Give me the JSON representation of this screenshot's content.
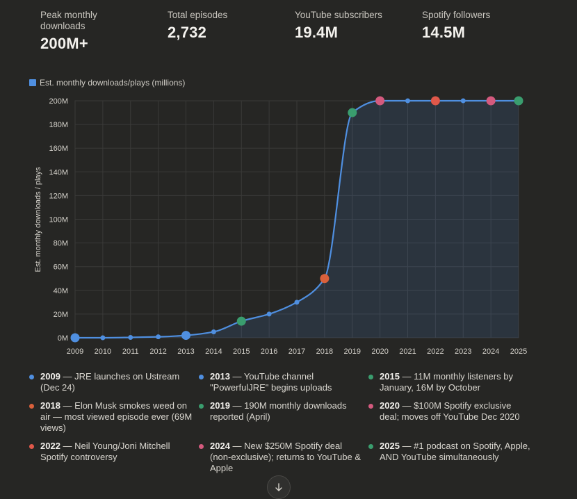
{
  "stats": [
    {
      "label": "Peak monthly downloads",
      "value": "200M+"
    },
    {
      "label": "Total episodes",
      "value": "2,732"
    },
    {
      "label": "YouTube subscribers",
      "value": "19.4M"
    },
    {
      "label": "Spotify followers",
      "value": "14.5M"
    }
  ],
  "chart_data": {
    "type": "line",
    "title": "",
    "legend": "Est. monthly downloads/plays (millions)",
    "ylabel": "Est. monthly downloads / plays",
    "xlabel": "",
    "x": [
      2009,
      2010,
      2011,
      2012,
      2013,
      2014,
      2015,
      2016,
      2017,
      2018,
      2019,
      2020,
      2021,
      2022,
      2023,
      2024,
      2025
    ],
    "values": [
      0,
      0,
      0.3,
      0.8,
      2,
      5,
      14,
      20,
      30,
      50,
      190,
      200,
      200,
      200,
      200,
      200,
      200
    ],
    "y_ticks": [
      "0M",
      "20M",
      "40M",
      "60M",
      "80M",
      "100M",
      "120M",
      "140M",
      "160M",
      "180M",
      "200M"
    ],
    "ylim": [
      0,
      200
    ],
    "grid": true,
    "highlight_points": [
      {
        "x": 2009,
        "color": "#4f8fe0"
      },
      {
        "x": 2013,
        "color": "#4f8fe0"
      },
      {
        "x": 2015,
        "color": "#3a9d6e"
      },
      {
        "x": 2018,
        "color": "#d9603b"
      },
      {
        "x": 2019,
        "color": "#3a9d6e"
      },
      {
        "x": 2020,
        "color": "#d45a7e"
      },
      {
        "x": 2022,
        "color": "#e0584a"
      },
      {
        "x": 2024,
        "color": "#d45a7e"
      },
      {
        "x": 2025,
        "color": "#3a9d6e"
      }
    ],
    "line_color": "#4f8fe0"
  },
  "events": [
    {
      "year": "2009",
      "text": " — JRE launches on Ustream (Dec 24)",
      "color": "#4f8fe0"
    },
    {
      "year": "2013",
      "text": " — YouTube channel \"PowerfulJRE\" begins uploads",
      "color": "#4f8fe0"
    },
    {
      "year": "2015",
      "text": " — 11M monthly listeners by January, 16M by October",
      "color": "#3a9d6e"
    },
    {
      "year": "2018",
      "text": " — Elon Musk smokes weed on air — most viewed episode ever (69M views)",
      "color": "#d9603b"
    },
    {
      "year": "2019",
      "text": " — 190M monthly downloads reported (April)",
      "color": "#3a9d6e"
    },
    {
      "year": "2020",
      "text": " — $100M Spotify exclusive deal; moves off YouTube Dec 2020",
      "color": "#d45a7e"
    },
    {
      "year": "2022",
      "text": " — Neil Young/Joni Mitchell Spotify controversy",
      "color": "#e0584a"
    },
    {
      "year": "2024",
      "text": " — New $250M Spotify deal (non-exclusive); returns to YouTube & Apple",
      "color": "#d45a7e"
    },
    {
      "year": "2025",
      "text": " — #1 podcast on Spotify, Apple, AND YouTube simultaneously",
      "color": "#3a9d6e"
    }
  ]
}
